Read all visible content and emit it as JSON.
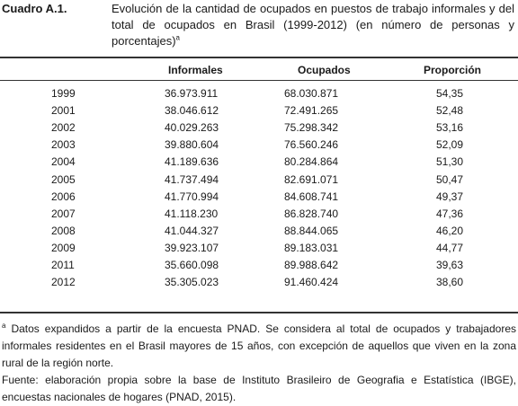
{
  "table": {
    "caption": "Cuadro A.1.",
    "title": "Evolución de la cantidad de ocupados en puestos de trabajo informales y del total de ocupados en Brasil (1999-2012) (en número de personas y porcentajes)",
    "title_note_mark": "a",
    "columns": [
      "",
      "Informales",
      "Ocupados",
      "Proporción"
    ],
    "rows": [
      {
        "year": "1999",
        "informales": "36.973.911",
        "ocupados": "68.030.871",
        "proporcion": "54,35"
      },
      {
        "year": "2001",
        "informales": "38.046.612",
        "ocupados": "72.491.265",
        "proporcion": "52,48"
      },
      {
        "year": "2002",
        "informales": "40.029.263",
        "ocupados": "75.298.342",
        "proporcion": "53,16"
      },
      {
        "year": "2003",
        "informales": "39.880.604",
        "ocupados": "76.560.246",
        "proporcion": "52,09"
      },
      {
        "year": "2004",
        "informales": "41.189.636",
        "ocupados": "80.284.864",
        "proporcion": "51,30"
      },
      {
        "year": "2005",
        "informales": "41.737.494",
        "ocupados": "82.691.071",
        "proporcion": "50,47"
      },
      {
        "year": "2006",
        "informales": "41.770.994",
        "ocupados": "84.608.741",
        "proporcion": "49,37"
      },
      {
        "year": "2007",
        "informales": "41.118.230",
        "ocupados": "86.828.740",
        "proporcion": "47,36"
      },
      {
        "year": "2008",
        "informales": "41.044.327",
        "ocupados": "88.844.065",
        "proporcion": "46,20"
      },
      {
        "year": "2009",
        "informales": "39.923.107",
        "ocupados": "89.183.031",
        "proporcion": "44,77"
      },
      {
        "year": "2011",
        "informales": "35.660.098",
        "ocupados": "89.988.642",
        "proporcion": "39,63"
      },
      {
        "year": "2012",
        "informales": "35.305.023",
        "ocupados": "91.460.424",
        "proporcion": "38,60"
      }
    ]
  },
  "notes": {
    "footnote_mark": "a",
    "footnote": "Datos expandidos a partir de la encuesta PNAD. Se considera al total de ocupados y trabajadores informales residentes en el Brasil mayores de 15 años, con excepción de aquellos que viven en la zona rural de la región norte.",
    "source": "Fuente: elaboración propia sobre la base de Instituto Brasileiro de Geografia e Estatística (IBGE), encuestas nacionales de hogares (PNAD, 2015)."
  }
}
